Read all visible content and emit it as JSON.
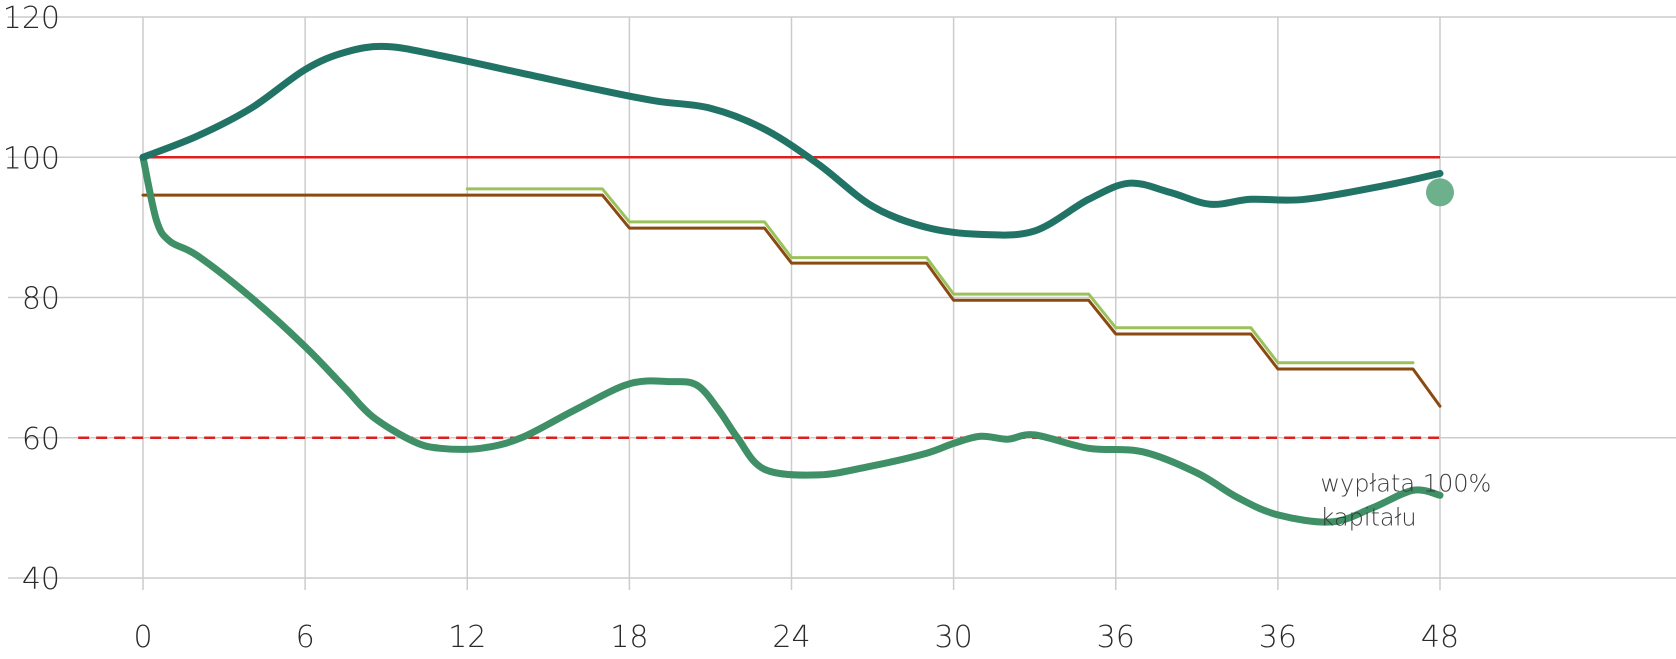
{
  "chart_data": {
    "type": "line",
    "title": "",
    "xlabel": "",
    "ylabel": "",
    "x_tick_labels": [
      "0",
      "6",
      "12",
      "18",
      "24",
      "30",
      "36",
      "36",
      "48"
    ],
    "y_ticks": [
      40,
      60,
      80,
      100,
      120
    ],
    "ylim": [
      40,
      120
    ],
    "xlim": [
      -5,
      58
    ],
    "grid": true,
    "colors": {
      "upper_line": "#217366",
      "lower_line": "#3f9066",
      "barrier": "#dd1f1f",
      "step_main": "#8a4a12",
      "step_light": "#9bc25a",
      "end_marker": "#6db08c",
      "grid": "#cccccc"
    },
    "reference_lines": [
      {
        "y": 100,
        "style": "solid",
        "color": "#dd1f1f",
        "x_range": [
          0,
          48
        ]
      },
      {
        "y": 60,
        "style": "dashed",
        "color": "#dd1f1f",
        "x_range": [
          -2.4,
          48
        ]
      }
    ],
    "series": [
      {
        "color": "#217366",
        "x": [
          0,
          2,
          4,
          6,
          7.5,
          9,
          11,
          14,
          17,
          19,
          21,
          23,
          25,
          27,
          29,
          31,
          33,
          35,
          36.5,
          38,
          39.5,
          41,
          43,
          46,
          48
        ],
        "y": [
          100,
          103,
          107,
          112.5,
          115,
          115.8,
          114.5,
          112,
          109.5,
          108,
          107,
          104,
          99,
          93,
          90,
          89,
          89.5,
          94,
          96.3,
          95,
          93.3,
          94,
          94,
          96,
          97.7
        ]
      },
      {
        "color": "#3f9066",
        "x": [
          0,
          0.5,
          1,
          2,
          4,
          6,
          7.5,
          8.5,
          10,
          11,
          12.5,
          14,
          16,
          18,
          19.5,
          20.5,
          21.3,
          22,
          23,
          25,
          27,
          29,
          30,
          31,
          32,
          33,
          35,
          37,
          39,
          40.5,
          42,
          44,
          45.5,
          47,
          48
        ],
        "y": [
          100,
          91,
          88,
          86,
          80,
          73,
          67,
          63,
          59.5,
          58.5,
          58.5,
          60,
          64,
          67.7,
          68,
          67.5,
          64,
          60,
          55.5,
          54.7,
          56,
          57.8,
          59.2,
          60.2,
          59.8,
          60.4,
          58.5,
          58,
          55,
          51.5,
          49,
          48,
          50,
          52.5,
          51.8
        ]
      },
      {
        "color": "#8a4a12",
        "x": [
          0,
          17,
          18,
          23,
          24,
          29,
          30,
          35,
          36,
          41,
          42,
          47,
          48
        ],
        "y": [
          94.6,
          94.6,
          89.9,
          89.9,
          84.9,
          84.9,
          79.6,
          79.6,
          74.8,
          74.8,
          69.8,
          69.8,
          64.5
        ]
      },
      {
        "color": "#9bc25a",
        "x": [
          12,
          17,
          18,
          23,
          24,
          29,
          30,
          35,
          36,
          41,
          42,
          47
        ],
        "y": [
          95.2,
          95.2,
          90.5,
          90.5,
          85.4,
          85.4,
          80.2,
          80.2,
          75.4,
          75.4,
          70.4,
          70.4
        ]
      }
    ],
    "end_marker": {
      "x": 48,
      "y": 95,
      "color": "#6db08c"
    },
    "annotation": {
      "x": 43.5,
      "y": 51.8,
      "lines": [
        "wypłata 100%",
        "kapitału"
      ]
    }
  }
}
